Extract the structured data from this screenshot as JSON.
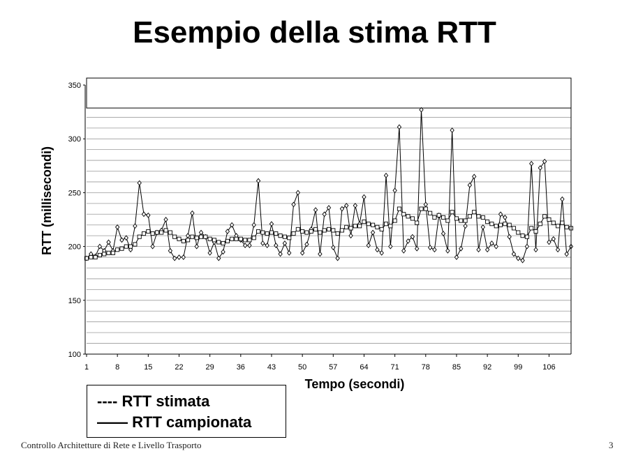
{
  "slide": {
    "title": "Esempio della stima RTT",
    "footer": "Controllo Architetture di Rete e Livello Trasporto",
    "page_number": "3"
  },
  "legend": {
    "items": [
      {
        "symbol": "----",
        "label": "RTT stimata"
      },
      {
        "symbol": "——",
        "label": "RTT campionata"
      }
    ]
  },
  "chart_data": {
    "type": "line",
    "xlabel": "Tempo (secondi)",
    "ylabel": "RTT (millisecondi)",
    "ylim": [
      100,
      350
    ],
    "y_ticks": [
      100,
      150,
      200,
      250,
      300,
      350
    ],
    "x_tick_labels": [
      "1",
      "8",
      "15",
      "22",
      "29",
      "36",
      "43",
      "50",
      "57",
      "64",
      "71",
      "78",
      "85",
      "92",
      "99",
      "106"
    ],
    "x": [
      1,
      2,
      3,
      4,
      5,
      6,
      7,
      8,
      9,
      10,
      11,
      12,
      13,
      14,
      15,
      16,
      17,
      18,
      19,
      20,
      21,
      22,
      23,
      24,
      25,
      26,
      27,
      28,
      29,
      30,
      31,
      32,
      33,
      34,
      35,
      36,
      37,
      38,
      39,
      40,
      41,
      42,
      43,
      44,
      45,
      46,
      47,
      48,
      49,
      50,
      51,
      52,
      53,
      54,
      55,
      56,
      57,
      58,
      59,
      60,
      61,
      62,
      63,
      64,
      65,
      66,
      67,
      68,
      69,
      70,
      71,
      72,
      73,
      74,
      75,
      76,
      77,
      78,
      79,
      80,
      81,
      82,
      83,
      84,
      85,
      86,
      87,
      88,
      89,
      90,
      91,
      92,
      93,
      94,
      95,
      96,
      97,
      98,
      99,
      100,
      101,
      102,
      103,
      104,
      105,
      106,
      107,
      108,
      109,
      110,
      111
    ],
    "series": [
      {
        "name": "RTT campionata",
        "marker": "diamond",
        "values": [
          189,
          193,
          191,
          200,
          196,
          204,
          196,
          218,
          206,
          208,
          197,
          219,
          259,
          230,
          229,
          200,
          213,
          215,
          225,
          196,
          189,
          190,
          190,
          210,
          231,
          200,
          213,
          209,
          194,
          204,
          189,
          195,
          214,
          220,
          210,
          206,
          201,
          201,
          220,
          261,
          203,
          201,
          221,
          201,
          193,
          203,
          194,
          239,
          250,
          194,
          202,
          216,
          234,
          193,
          230,
          236,
          199,
          189,
          235,
          238,
          210,
          238,
          221,
          246,
          201,
          213,
          197,
          194,
          266,
          200,
          252,
          311,
          196,
          205,
          209,
          198,
          327,
          239,
          199,
          197,
          229,
          212,
          196,
          308,
          190,
          198,
          219,
          257,
          265,
          197,
          218,
          197,
          203,
          200,
          230,
          227,
          209,
          193,
          189,
          187,
          200,
          277,
          197,
          273,
          279,
          204,
          207,
          197,
          244,
          193,
          200
        ],
        "estimated_ms": [
          189,
          190,
          190,
          192,
          193,
          194,
          194,
          197,
          198,
          200,
          200,
          202,
          209,
          212,
          214,
          212,
          213,
          213,
          215,
          213,
          209,
          207,
          205,
          206,
          209,
          208,
          209,
          209,
          207,
          206,
          204,
          203,
          205,
          207,
          207,
          207,
          206,
          206,
          208,
          214,
          213,
          212,
          213,
          212,
          210,
          209,
          208,
          212,
          216,
          214,
          213,
          214,
          216,
          213,
          215,
          216,
          215,
          212,
          215,
          218,
          217,
          219,
          219,
          223,
          221,
          220,
          218,
          216,
          221,
          219,
          224,
          235,
          230,
          228,
          226,
          222,
          235,
          235,
          231,
          227,
          229,
          227,
          224,
          232,
          226,
          224,
          224,
          228,
          232,
          228,
          227,
          223,
          221,
          219,
          220,
          221,
          220,
          217,
          213,
          210,
          209,
          217,
          214,
          221,
          228,
          225,
          222,
          219,
          222,
          218,
          217
        ]
      },
      {
        "name": "RTT stimata",
        "marker": "square",
        "values": [
          189,
          190,
          190,
          192,
          193,
          194,
          194,
          197,
          198,
          200,
          200,
          202,
          209,
          212,
          214,
          212,
          213,
          213,
          215,
          213,
          209,
          207,
          205,
          206,
          209,
          208,
          209,
          209,
          207,
          206,
          204,
          203,
          205,
          207,
          207,
          207,
          206,
          206,
          208,
          214,
          213,
          212,
          213,
          212,
          210,
          209,
          208,
          212,
          216,
          214,
          213,
          214,
          216,
          213,
          215,
          216,
          215,
          212,
          215,
          218,
          217,
          219,
          219,
          223,
          221,
          220,
          218,
          216,
          221,
          219,
          224,
          235,
          230,
          228,
          226,
          222,
          235,
          235,
          231,
          227,
          229,
          227,
          224,
          232,
          226,
          224,
          224,
          228,
          232,
          228,
          227,
          223,
          221,
          219,
          220,
          221,
          220,
          217,
          213,
          210,
          209,
          217,
          214,
          221,
          228,
          225,
          222,
          219,
          222,
          218,
          217
        ]
      }
    ]
  },
  "colors": {
    "line": "#000000",
    "grid": "#9a9a9a",
    "marker_fill": "#ffffff"
  }
}
